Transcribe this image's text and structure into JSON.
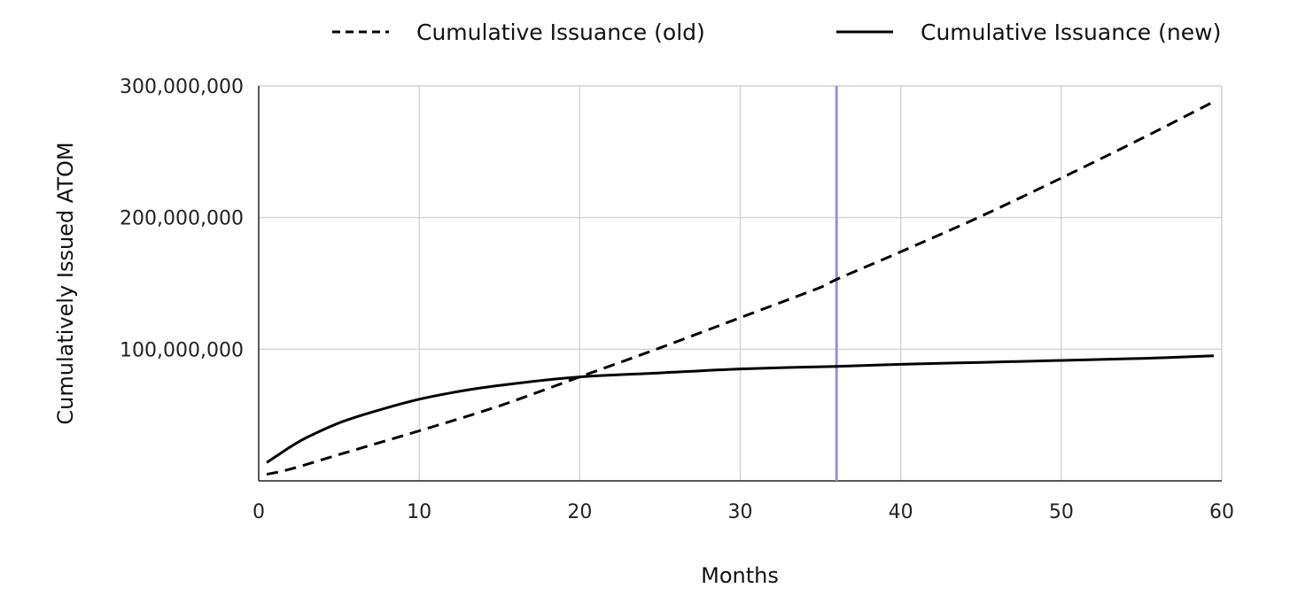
{
  "chart_data": {
    "type": "line",
    "title": "",
    "xlabel": "Months",
    "ylabel": "Cumulatively Issued ATOM",
    "xlim": [
      0,
      60
    ],
    "ylim": [
      0,
      300000000
    ],
    "x_ticks": [
      0,
      10,
      20,
      30,
      40,
      50,
      60
    ],
    "y_ticks": [
      100000000,
      200000000,
      300000000
    ],
    "x_tick_labels": [
      "0",
      "10",
      "20",
      "30",
      "40",
      "50",
      "60"
    ],
    "y_tick_labels": [
      "100,000,000",
      "200,000,000",
      "300,000,000"
    ],
    "grid": true,
    "legend_position": "top",
    "reference_line": {
      "x": 36,
      "color": "#9b8ce6"
    },
    "series": [
      {
        "name": "Cumulative Issuance (old)",
        "style": "dashed",
        "color": "#000000",
        "x": [
          0.5,
          2,
          5,
          10,
          15,
          20,
          25,
          30,
          35,
          36,
          40,
          45,
          50,
          55,
          59.5
        ],
        "y": [
          5000000,
          9000000,
          20000000,
          38000000,
          57000000,
          79000000,
          101000000,
          124000000,
          147000000,
          153000000,
          174000000,
          201000000,
          230000000,
          260000000,
          288000000
        ]
      },
      {
        "name": "Cumulative Issuance (new)",
        "style": "solid",
        "color": "#000000",
        "x": [
          0.5,
          1,
          2,
          3,
          5,
          7,
          10,
          13,
          16,
          20,
          25,
          30,
          36,
          40,
          45,
          50,
          55,
          59.5
        ],
        "y": [
          14000000,
          18000000,
          26000000,
          33000000,
          44000000,
          52000000,
          62000000,
          69000000,
          74000000,
          79000000,
          82000000,
          85000000,
          87000000,
          88500000,
          90000000,
          91500000,
          93000000,
          95000000
        ]
      }
    ]
  }
}
